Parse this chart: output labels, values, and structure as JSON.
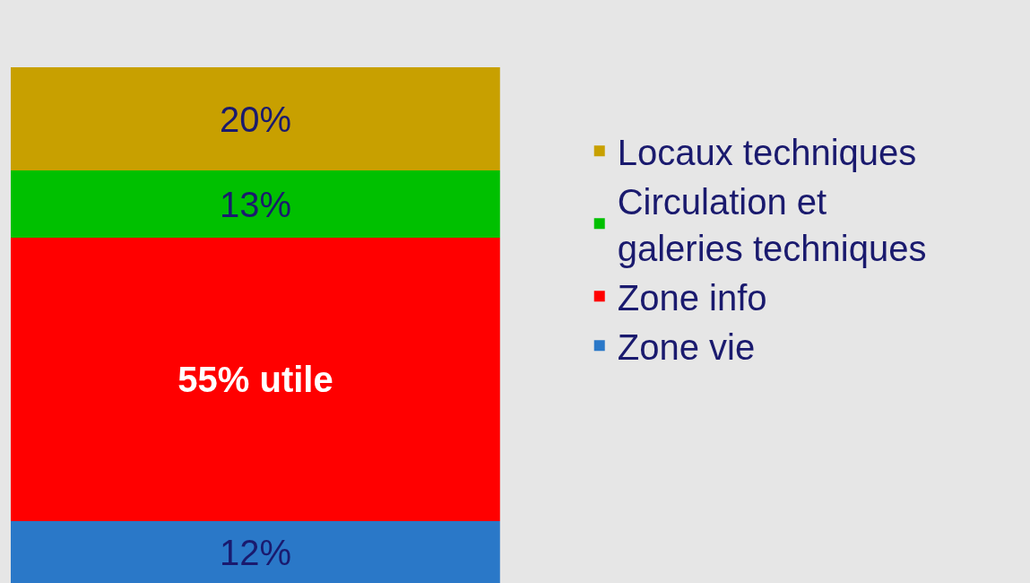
{
  "chart_data": {
    "type": "bar",
    "stacked": true,
    "categories": [
      null
    ],
    "series": [
      {
        "name": "Zone vie",
        "color": "#2a78c8",
        "values": [
          12
        ],
        "value_labels": [
          "12%"
        ]
      },
      {
        "name": "Zone info",
        "color": "#ff0000",
        "values": [
          55
        ],
        "value_labels": [
          "55% utile"
        ]
      },
      {
        "name": "Circulation et galeries techniques",
        "color": "#00c000",
        "values": [
          13
        ],
        "value_labels": [
          "13%"
        ]
      },
      {
        "name": "Locaux techniques",
        "color": "#c8a000",
        "values": [
          20
        ],
        "value_labels": [
          "20%"
        ]
      }
    ],
    "legend": "right",
    "tick_labels": false,
    "grid": false
  }
}
